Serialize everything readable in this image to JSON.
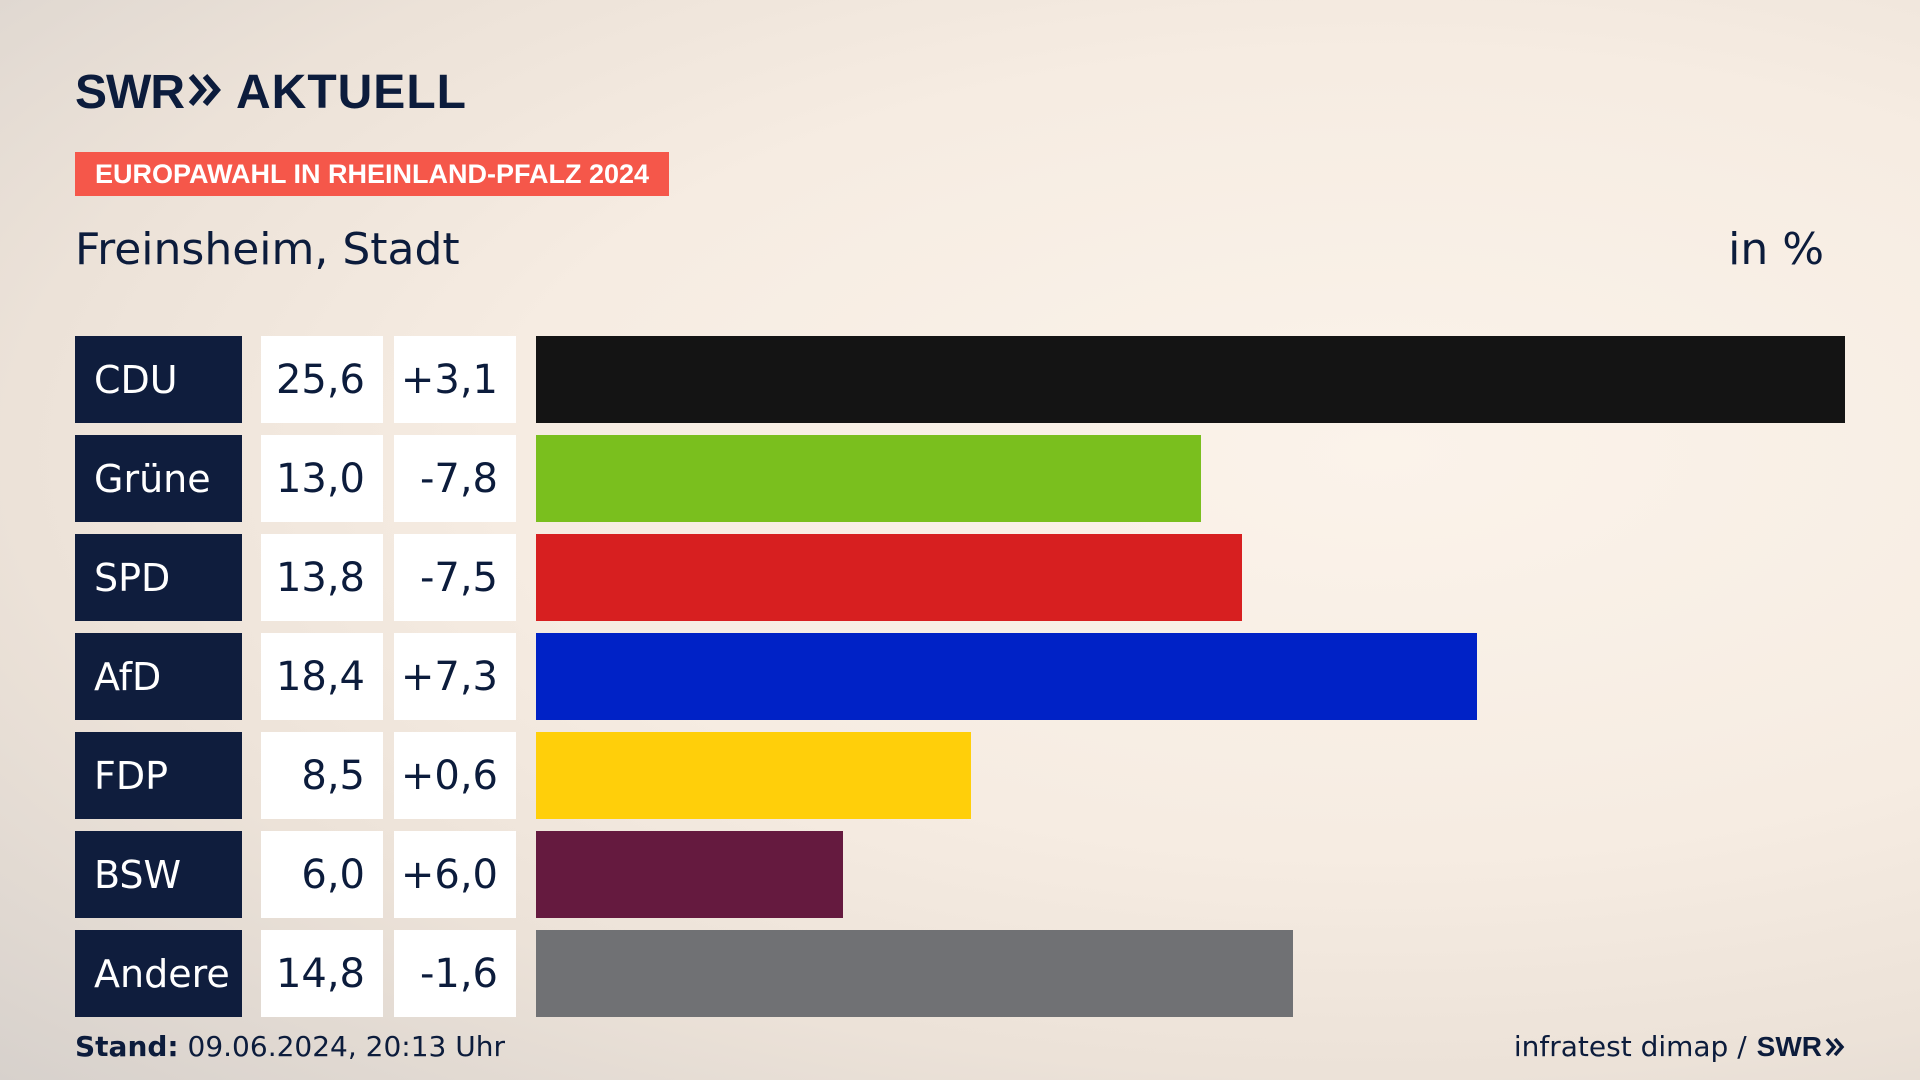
{
  "brand": {
    "logo_left": "SWR",
    "logo_right": "AKTUELL",
    "footer_logo": "SWR"
  },
  "banner": "EUROPAWAHL IN RHEINLAND-PFALZ 2024",
  "place": "Freinsheim, Stadt",
  "unit": "in %",
  "footer": {
    "stand_label": "Stand:",
    "stand_value": "09.06.2024, 20:13 Uhr",
    "source": "infratest dimap /"
  },
  "chart_data": {
    "type": "bar",
    "categories": [
      "CDU",
      "Grüne",
      "SPD",
      "AfD",
      "FDP",
      "BSW",
      "Andere"
    ],
    "values": [
      25.6,
      13.0,
      13.8,
      18.4,
      8.5,
      6.0,
      14.8
    ],
    "value_labels": [
      "25,6",
      "13,0",
      "13,8",
      "18,4",
      "8,5",
      "6,0",
      "14,8"
    ],
    "diff_labels": [
      "+3,1",
      "-7,8",
      "-7,5",
      "+7,3",
      "+0,6",
      "+6,0",
      "-1,6"
    ],
    "colors": [
      "#141414",
      "#7abf1e",
      "#d71f20",
      "#0022c6",
      "#ffcf0a",
      "#651a3f",
      "#707174"
    ],
    "xlim": [
      0,
      25.6
    ]
  }
}
